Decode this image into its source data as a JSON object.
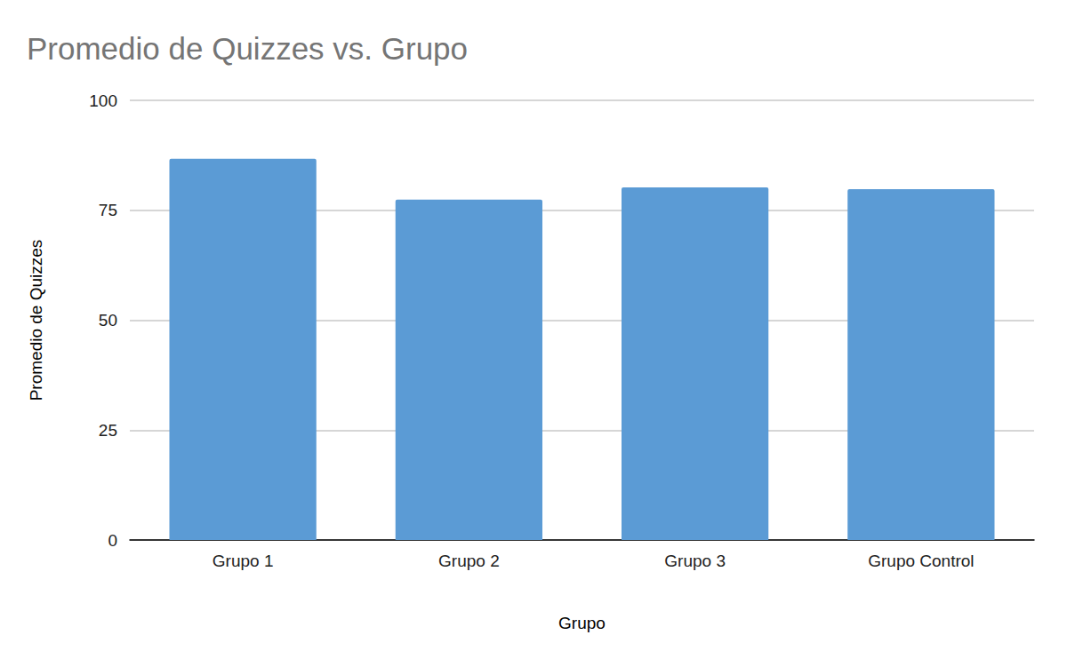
{
  "chart_data": {
    "type": "bar",
    "title": "Promedio de Quizzes vs. Grupo",
    "x_label": "Grupo",
    "y_label": "Promedio de Quizzes",
    "categories": [
      "Grupo 1",
      "Grupo 2",
      "Grupo 3",
      "Grupo Control"
    ],
    "values": [
      86.7,
      77.4,
      80.2,
      79.8
    ],
    "color": "#5b9bd5",
    "ylim": [
      0,
      100
    ],
    "yticks": [
      0,
      25,
      50,
      75,
      100
    ],
    "grid": true
  }
}
